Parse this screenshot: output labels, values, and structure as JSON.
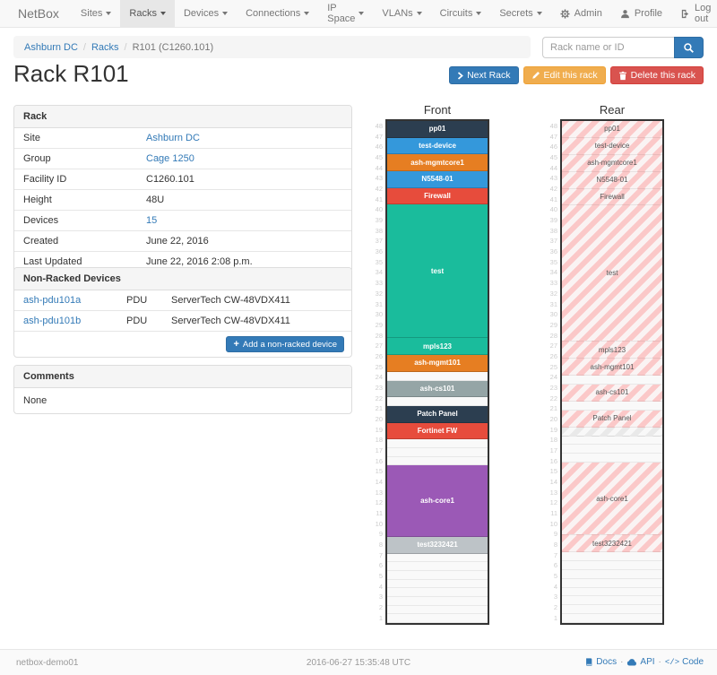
{
  "navbar": {
    "brand": "NetBox",
    "items": [
      {
        "label": "Sites"
      },
      {
        "label": "Racks",
        "active": true
      },
      {
        "label": "Devices"
      },
      {
        "label": "Connections"
      },
      {
        "label": "IP Space"
      },
      {
        "label": "VLANs"
      },
      {
        "label": "Circuits"
      },
      {
        "label": "Secrets"
      }
    ],
    "right": [
      {
        "label": "Admin",
        "icon": "gear-icon"
      },
      {
        "label": "Profile",
        "icon": "user-icon"
      },
      {
        "label": "Log out",
        "icon": "logout-icon"
      }
    ]
  },
  "breadcrumb": {
    "links": [
      "Ashburn DC",
      "Racks"
    ],
    "current": "R101 (C1260.101)"
  },
  "search": {
    "placeholder": "Rack name or ID"
  },
  "page": {
    "title": "Rack R101"
  },
  "actions": {
    "next": "Next Rack",
    "edit": "Edit this rack",
    "delete": "Delete this rack"
  },
  "rack_panel": {
    "title": "Rack",
    "rows": [
      {
        "label": "Site",
        "value": "Ashburn DC",
        "link": true
      },
      {
        "label": "Group",
        "value": "Cage 1250",
        "link": true
      },
      {
        "label": "Facility ID",
        "value": "C1260.101"
      },
      {
        "label": "Height",
        "value": "48U"
      },
      {
        "label": "Devices",
        "value": "15",
        "link": true
      },
      {
        "label": "Created",
        "value": "June 22, 2016"
      },
      {
        "label": "Last Updated",
        "value": "June 22, 2016 2:08 p.m."
      }
    ]
  },
  "nonracked_panel": {
    "title": "Non-Racked Devices",
    "rows": [
      {
        "name": "ash-pdu101a",
        "role": "PDU",
        "model": "ServerTech CW-48VDX411"
      },
      {
        "name": "ash-pdu101b",
        "role": "PDU",
        "model": "ServerTech CW-48VDX411"
      }
    ],
    "add_button": "Add a non-racked device"
  },
  "comments_panel": {
    "title": "Comments",
    "body": "None"
  },
  "elevations": {
    "unit_labels": [
      48,
      47,
      46,
      45,
      44,
      43,
      42,
      41,
      40,
      39,
      38,
      37,
      36,
      35,
      34,
      33,
      32,
      31,
      30,
      29,
      28,
      27,
      26,
      25,
      24,
      23,
      22,
      21,
      20,
      19,
      18,
      17,
      16,
      15,
      14,
      13,
      12,
      11,
      10,
      9,
      8,
      7,
      6,
      5,
      4,
      3,
      2,
      1
    ],
    "stripe_colors": {
      "pink": "#fbc8c8",
      "ghost": "#e9e9e9"
    },
    "front": {
      "title": "Front",
      "blocks": [
        {
          "u": 1,
          "label": "pp01",
          "bg": "#2c3e50"
        },
        {
          "u": 1,
          "label": "test-device",
          "bg": "#3498db"
        },
        {
          "u": 1,
          "label": "ash-mgmtcore1",
          "bg": "#e67e22"
        },
        {
          "u": 1,
          "label": "N5548-01",
          "bg": "#3498db"
        },
        {
          "u": 1,
          "label": "Firewall",
          "bg": "#e74c3c"
        },
        {
          "u": 16,
          "label": "test",
          "bg": "#1abc9c"
        },
        {
          "u": 1,
          "label": "mpls123",
          "bg": "#1abc9c"
        },
        {
          "u": 1,
          "label": "ash-mgmt101",
          "bg": "#e67e22"
        },
        {
          "u": 1,
          "type": "empty"
        },
        {
          "u": 1,
          "label": "ash-cs101",
          "bg": "#95a5a6"
        },
        {
          "u": 1,
          "type": "empty"
        },
        {
          "u": 1,
          "label": "Patch Panel",
          "bg": "#2c3e50"
        },
        {
          "u": 1,
          "label": "Fortinet FW",
          "bg": "#e74c3c"
        },
        {
          "u": 3,
          "type": "empty"
        },
        {
          "u": 8,
          "label": "ash-core1",
          "bg": "#9b59b6"
        },
        {
          "u": 1,
          "label": "test3232421",
          "bg": "#bdc3c7"
        },
        {
          "u": 8,
          "type": "empty"
        }
      ]
    },
    "rear": {
      "title": "Rear",
      "blocks": [
        {
          "u": 1,
          "label": "pp01",
          "type": "occupied"
        },
        {
          "u": 1,
          "label": "test-device",
          "type": "occupied"
        },
        {
          "u": 1,
          "label": "ash-mgmtcore1",
          "type": "occupied"
        },
        {
          "u": 1,
          "label": "N5548-01",
          "type": "occupied"
        },
        {
          "u": 1,
          "label": "Firewall",
          "type": "occupied"
        },
        {
          "u": 16,
          "label": "test",
          "type": "occupied"
        },
        {
          "u": 1,
          "label": "mpls123",
          "type": "occupied"
        },
        {
          "u": 1,
          "label": "ash-mgmt101",
          "type": "occupied"
        },
        {
          "u": 1,
          "type": "empty"
        },
        {
          "u": 1,
          "label": "ash-cs101",
          "type": "occupied"
        },
        {
          "u": 1,
          "type": "empty"
        },
        {
          "u": 1,
          "label": "Patch Panel",
          "type": "occupied"
        },
        {
          "u": 1,
          "type": "ghost"
        },
        {
          "u": 3,
          "type": "empty"
        },
        {
          "u": 8,
          "label": "ash-core1",
          "type": "occupied"
        },
        {
          "u": 1,
          "label": "test3232421",
          "type": "occupied"
        },
        {
          "u": 8,
          "type": "empty"
        }
      ]
    }
  },
  "footer": {
    "hostname": "netbox-demo01",
    "timestamp": "2016-06-27 15:35:48 UTC",
    "links": [
      {
        "label": "Docs",
        "icon": "book-icon"
      },
      {
        "label": "API",
        "icon": "cloud-icon"
      },
      {
        "label": "Code",
        "icon": "code-icon"
      }
    ]
  }
}
